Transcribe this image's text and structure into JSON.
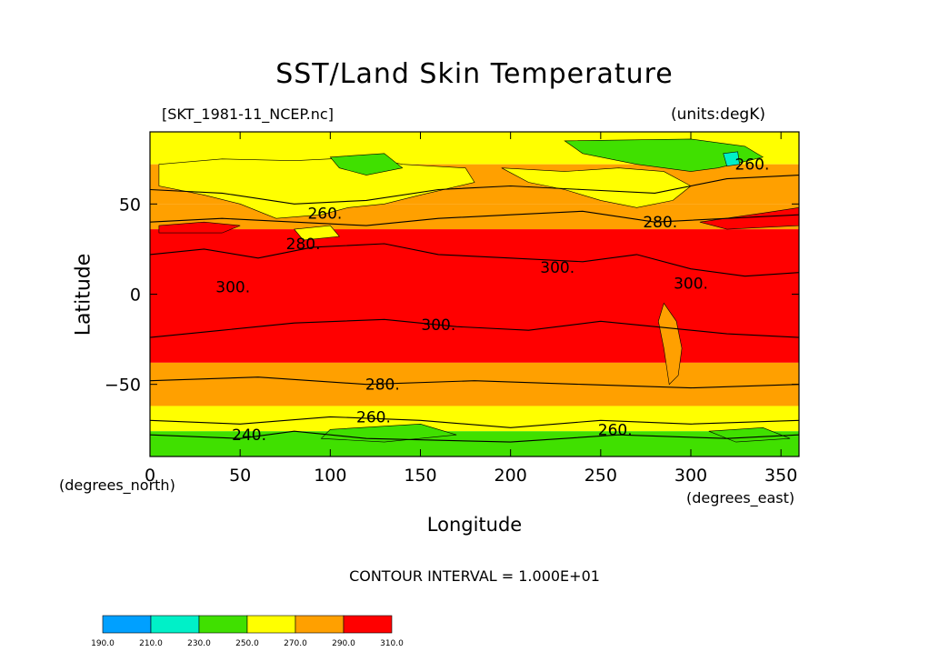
{
  "chart_data": {
    "type": "heatmap",
    "title": "SST/Land Skin Temperature",
    "source_file": "[SKT_1981-11_NCEP.nc]",
    "units_label": "(units:degK)",
    "xlabel": "Longitude",
    "ylabel": "Latitude",
    "x_units": "(degrees_east)",
    "y_units": "(degrees_north)",
    "xlim": [
      0,
      360
    ],
    "ylim": [
      -90,
      90
    ],
    "x_ticks": [
      0,
      50,
      100,
      150,
      200,
      250,
      300,
      350
    ],
    "y_ticks": [
      -50,
      0,
      50
    ],
    "contour_interval_text": "CONTOUR INTERVAL = 1.000E+01",
    "colorbar": {
      "levels": [
        "190.0",
        "210.0",
        "230.0",
        "250.0",
        "270.0",
        "290.0",
        "310.0"
      ],
      "colors": [
        "#00a0ff",
        "#00f0c8",
        "#40e000",
        "#ffff00",
        "#ffa000",
        "#ff0000"
      ]
    },
    "zonal_bands": [
      {
        "lat_from": 90,
        "lat_to": 72,
        "value": 250
      },
      {
        "lat_from": 72,
        "lat_to": 50,
        "value": 270
      },
      {
        "lat_from": 50,
        "lat_to": 36,
        "value": 280
      },
      {
        "lat_from": 36,
        "lat_to": -38,
        "value": 300
      },
      {
        "lat_from": -38,
        "lat_to": -62,
        "value": 285
      },
      {
        "lat_from": -62,
        "lat_to": -76,
        "value": 265
      },
      {
        "lat_from": -76,
        "lat_to": -90,
        "value": 245
      }
    ],
    "contour_labels": [
      {
        "text": "260.",
        "lon": 97,
        "lat": 45
      },
      {
        "text": "280.",
        "lon": 85,
        "lat": 28
      },
      {
        "text": "300.",
        "lon": 46,
        "lat": 4
      },
      {
        "text": "300.",
        "lon": 226,
        "lat": 15
      },
      {
        "text": "300.",
        "lon": 300,
        "lat": 6
      },
      {
        "text": "300.",
        "lon": 160,
        "lat": -17
      },
      {
        "text": "280.",
        "lon": 283,
        "lat": 40
      },
      {
        "text": "260.",
        "lon": 334,
        "lat": 72
      },
      {
        "text": "280.",
        "lon": 129,
        "lat": -50
      },
      {
        "text": "260.",
        "lon": 124,
        "lat": -68
      },
      {
        "text": "240.",
        "lon": 55,
        "lat": -78
      },
      {
        "text": "260.",
        "lon": 258,
        "lat": -75
      }
    ]
  }
}
